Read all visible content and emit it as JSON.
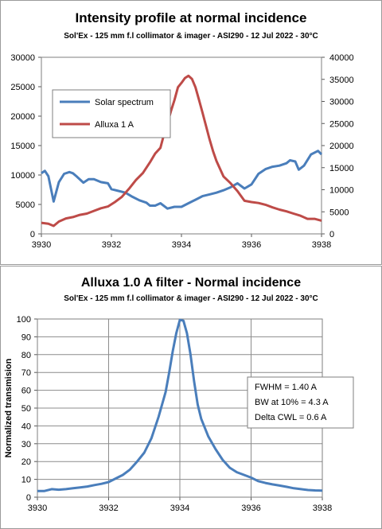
{
  "chart_data": [
    {
      "type": "line",
      "title": "Intensity profile at normal incidence",
      "subtitle": "Sol'Ex - 125 mm f.l collimator & imager - ASI290 - 12 Jul 2022 - 30°C",
      "xlim": [
        3930,
        3938
      ],
      "xticks": [
        "3930",
        "3932",
        "3934",
        "3936",
        "3938"
      ],
      "ylim": [
        0,
        30000
      ],
      "yticks": [
        "0",
        "5000",
        "10000",
        "15000",
        "20000",
        "25000",
        "30000"
      ],
      "y2lim": [
        0,
        40000
      ],
      "y2ticks": [
        "0",
        "5000",
        "10000",
        "15000",
        "20000",
        "25000",
        "30000",
        "35000",
        "40000"
      ],
      "grid": false,
      "legend_placement": "upper-left inside",
      "series": [
        {
          "name": "Solar spectrum",
          "axis": "left",
          "color": "#4a7ebb",
          "x": [
            3930.0,
            3930.1,
            3930.2,
            3930.35,
            3930.5,
            3930.65,
            3930.8,
            3930.9,
            3931.0,
            3931.2,
            3931.35,
            3931.5,
            3931.7,
            3931.9,
            3932.0,
            3932.2,
            3932.4,
            3932.6,
            3932.8,
            3933.0,
            3933.1,
            3933.25,
            3933.4,
            3933.6,
            3933.8,
            3934.0,
            3934.2,
            3934.4,
            3934.6,
            3934.8,
            3935.0,
            3935.2,
            3935.4,
            3935.6,
            3935.8,
            3936.0,
            3936.2,
            3936.4,
            3936.6,
            3936.8,
            3937.0,
            3937.1,
            3937.25,
            3937.35,
            3937.5,
            3937.7,
            3937.9,
            3938.0
          ],
          "values": [
            10300,
            10700,
            9800,
            5500,
            8800,
            10200,
            10500,
            10300,
            9800,
            8700,
            9300,
            9300,
            8800,
            8600,
            7600,
            7300,
            7000,
            6300,
            5700,
            5300,
            4800,
            4800,
            5200,
            4300,
            4600,
            4600,
            5200,
            5800,
            6400,
            6700,
            7000,
            7400,
            7900,
            8600,
            7700,
            8400,
            10200,
            11000,
            11400,
            11600,
            12000,
            12500,
            12300,
            10900,
            11600,
            13500,
            14100,
            13500
          ]
        },
        {
          "name": "Alluxa 1 A",
          "axis": "right",
          "color": "#be4b48",
          "x": [
            3930.0,
            3930.2,
            3930.35,
            3930.5,
            3930.7,
            3930.9,
            3931.1,
            3931.3,
            3931.5,
            3931.7,
            3931.9,
            3932.1,
            3932.3,
            3932.5,
            3932.7,
            3932.9,
            3933.1,
            3933.25,
            3933.4,
            3933.5,
            3933.6,
            3933.7,
            3933.8,
            3933.9,
            3934.0,
            3934.1,
            3934.2,
            3934.3,
            3934.4,
            3934.5,
            3934.6,
            3934.7,
            3934.8,
            3934.9,
            3935.0,
            3935.2,
            3935.4,
            3935.6,
            3935.8,
            3936.0,
            3936.2,
            3936.4,
            3936.6,
            3936.8,
            3937.0,
            3937.2,
            3937.4,
            3937.6,
            3937.8,
            3938.0
          ],
          "values": [
            2500,
            2300,
            1800,
            2800,
            3500,
            3800,
            4300,
            4600,
            5200,
            5800,
            6200,
            7200,
            8400,
            10200,
            12200,
            13800,
            16200,
            18200,
            19500,
            22500,
            25000,
            27800,
            30300,
            33200,
            34200,
            35300,
            35800,
            35100,
            33200,
            30400,
            27500,
            24500,
            21500,
            18800,
            16500,
            13000,
            11500,
            9700,
            7500,
            7200,
            7000,
            6600,
            6000,
            5500,
            5100,
            4600,
            4100,
            3400,
            3400,
            3000
          ]
        }
      ]
    },
    {
      "type": "line",
      "title": "Alluxa 1.0 A filter - Normal incidence",
      "subtitle": "Sol'Ex - 125 mm f.l collimator & imager - ASI290 - 12 Jul 2022 - 30°C",
      "ylabel": "Normalized transmision",
      "xlim": [
        3930,
        3938
      ],
      "xticks": [
        "3930",
        "3932",
        "3934",
        "3936",
        "3938"
      ],
      "ylim": [
        0,
        100
      ],
      "yticks": [
        "0",
        "10",
        "20",
        "30",
        "40",
        "50",
        "60",
        "70",
        "80",
        "90",
        "100"
      ],
      "grid": true,
      "annotation": [
        "FWHM = 1.40  A",
        "BW at 10% = 4.3 A",
        "Delta CWL = 0.6 A"
      ],
      "series": [
        {
          "color": "#4a7ebb",
          "x": [
            3930.0,
            3930.2,
            3930.4,
            3930.6,
            3930.8,
            3931.0,
            3931.2,
            3931.4,
            3931.6,
            3931.8,
            3932.0,
            3932.2,
            3932.4,
            3932.6,
            3932.8,
            3933.0,
            3933.2,
            3933.4,
            3933.6,
            3933.7,
            3933.8,
            3933.9,
            3934.0,
            3934.1,
            3934.2,
            3934.3,
            3934.4,
            3934.5,
            3934.6,
            3934.8,
            3935.0,
            3935.2,
            3935.4,
            3935.6,
            3935.8,
            3936.0,
            3936.2,
            3936.4,
            3936.6,
            3936.8,
            3937.0,
            3937.2,
            3937.4,
            3937.6,
            3937.8,
            3938.0
          ],
          "values": [
            3.5,
            3.5,
            4.5,
            4.2,
            4.5,
            5.0,
            5.5,
            6.0,
            6.8,
            7.5,
            8.5,
            10.5,
            12.5,
            15.5,
            20.0,
            25.0,
            33.0,
            45.0,
            59.0,
            70.0,
            82.0,
            92.0,
            99.5,
            99.0,
            92.0,
            80.0,
            65.0,
            52.0,
            44.0,
            34.0,
            27.0,
            21.0,
            16.5,
            14.0,
            12.5,
            11.0,
            9.0,
            8.0,
            7.2,
            6.5,
            5.8,
            5.0,
            4.5,
            4.0,
            3.8,
            3.7
          ]
        }
      ]
    }
  ]
}
